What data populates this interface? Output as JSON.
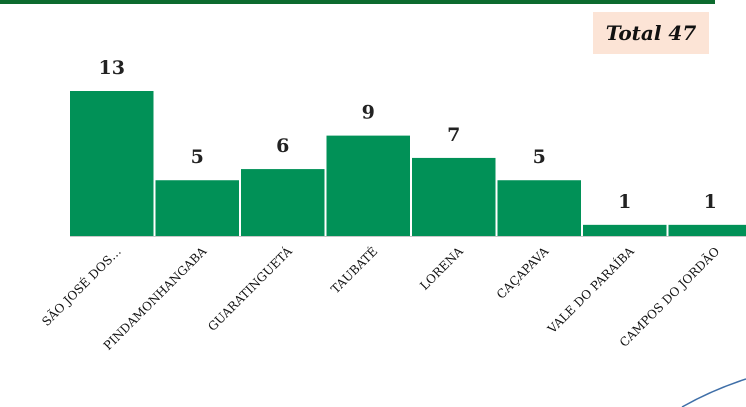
{
  "total_label": "Total 47",
  "colors": {
    "bar": "#019157",
    "top_rule": "#0d6b2e",
    "total_box": "#fce4d6",
    "baseline": "#c8c8c8"
  },
  "chart_data": {
    "type": "bar",
    "categories": [
      "SÃO JOSÉ DOS…",
      "PINDAMONHANGABA",
      "GUARATINGUETÁ",
      "TAUBATÉ",
      "LORENA",
      "CAÇAPAVA",
      "VALE DO PARAÍBA",
      "CAMPOS DO JORDÃO"
    ],
    "values": [
      13,
      5,
      6,
      9,
      7,
      5,
      1,
      1
    ],
    "title": "",
    "xlabel": "",
    "ylabel": "",
    "ylim": [
      0,
      13
    ],
    "grid": false,
    "legend": "none"
  }
}
